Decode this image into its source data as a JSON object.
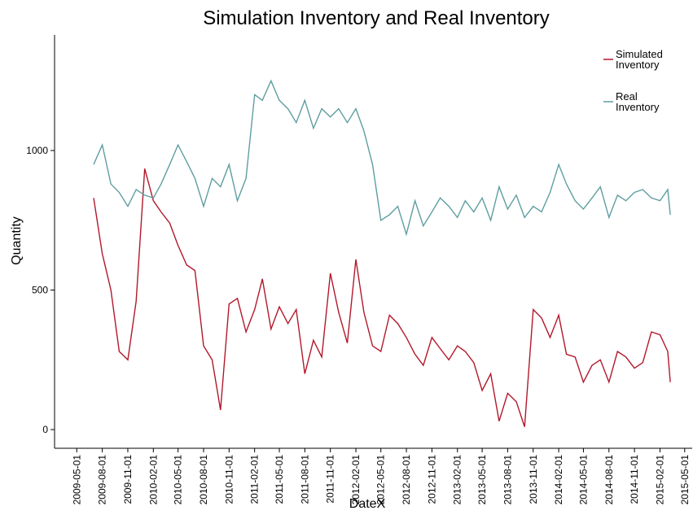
{
  "chart_data": {
    "type": "line",
    "title": "Simulation Inventory and Real Inventory",
    "x_label": "DateX",
    "y_label": "Quantity",
    "x": [
      "2009-07-01",
      "2009-08-01",
      "2009-09-01",
      "2009-10-01",
      "2009-11-01",
      "2009-12-01",
      "2010-01-01",
      "2010-02-01",
      "2010-03-01",
      "2010-04-01",
      "2010-05-01",
      "2010-06-01",
      "2010-07-01",
      "2010-08-01",
      "2010-09-01",
      "2010-10-01",
      "2010-11-01",
      "2010-12-01",
      "2011-01-01",
      "2011-02-01",
      "2011-03-01",
      "2011-04-01",
      "2011-05-01",
      "2011-06-01",
      "2011-07-01",
      "2011-08-01",
      "2011-09-01",
      "2011-10-01",
      "2011-11-01",
      "2011-12-01",
      "2012-01-01",
      "2012-02-01",
      "2012-03-01",
      "2012-04-01",
      "2012-05-01",
      "2012-06-01",
      "2012-07-01",
      "2012-08-01",
      "2012-09-01",
      "2012-10-01",
      "2012-11-01",
      "2012-12-01",
      "2013-01-01",
      "2013-02-01",
      "2013-03-01",
      "2013-04-01",
      "2013-05-01",
      "2013-06-01",
      "2013-07-01",
      "2013-08-01",
      "2013-09-01",
      "2013-10-01",
      "2013-11-01",
      "2013-12-01",
      "2014-01-01",
      "2014-02-01",
      "2014-03-01",
      "2014-04-01",
      "2014-05-01",
      "2014-06-01",
      "2014-07-01",
      "2014-08-01",
      "2014-09-01",
      "2014-10-01",
      "2014-11-01",
      "2014-12-01",
      "2015-01-01",
      "2015-02-01",
      "2015-03-01",
      "2015-03-10"
    ],
    "series": [
      {
        "name": "Simulated Inventory",
        "color": "#b2182b",
        "values": [
          830,
          630,
          500,
          280,
          250,
          460,
          935,
          820,
          780,
          740,
          660,
          590,
          570,
          300,
          250,
          70,
          450,
          470,
          350,
          430,
          540,
          360,
          440,
          380,
          430,
          200,
          320,
          260,
          560,
          420,
          310,
          610,
          420,
          300,
          280,
          410,
          380,
          330,
          270,
          230,
          330,
          290,
          250,
          300,
          280,
          240,
          140,
          200,
          30,
          130,
          100,
          10,
          430,
          400,
          330,
          410,
          270,
          260,
          170,
          230,
          250,
          170,
          280,
          260,
          220,
          240,
          350,
          340,
          280,
          170
        ]
      },
      {
        "name": "Real Inventory",
        "color": "#5f9ea0",
        "values": [
          950,
          1020,
          880,
          850,
          800,
          860,
          840,
          830,
          880,
          950,
          1020,
          960,
          900,
          800,
          900,
          870,
          950,
          820,
          900,
          1200,
          1180,
          1250,
          1180,
          1150,
          1100,
          1180,
          1080,
          1150,
          1120,
          1150,
          1100,
          1150,
          1070,
          950,
          750,
          770,
          800,
          700,
          820,
          730,
          780,
          830,
          800,
          760,
          820,
          780,
          830,
          750,
          870,
          790,
          840,
          760,
          800,
          780,
          850,
          950,
          880,
          820,
          790,
          830,
          870,
          760,
          840,
          820,
          850,
          860,
          830,
          820,
          860,
          770
        ]
      }
    ],
    "xlim": [
      "2009-02-10",
      "2015-05-28"
    ],
    "xticks": [
      "2009-05-01",
      "2009-08-01",
      "2009-11-01",
      "2010-02-01",
      "2010-05-01",
      "2010-08-01",
      "2010-11-01",
      "2011-02-01",
      "2011-05-01",
      "2011-08-01",
      "2011-11-01",
      "2012-02-01",
      "2012-05-01",
      "2012-08-01",
      "2012-11-01",
      "2013-02-01",
      "2013-05-01",
      "2013-08-01",
      "2013-11-01",
      "2014-02-01",
      "2014-05-01",
      "2014-08-01",
      "2014-11-01",
      "2015-02-01",
      "2015-05-01"
    ],
    "ylim": [
      -67,
      1414
    ],
    "yticks": [
      0,
      500,
      1000
    ],
    "grid": false,
    "legend": "top-right"
  }
}
